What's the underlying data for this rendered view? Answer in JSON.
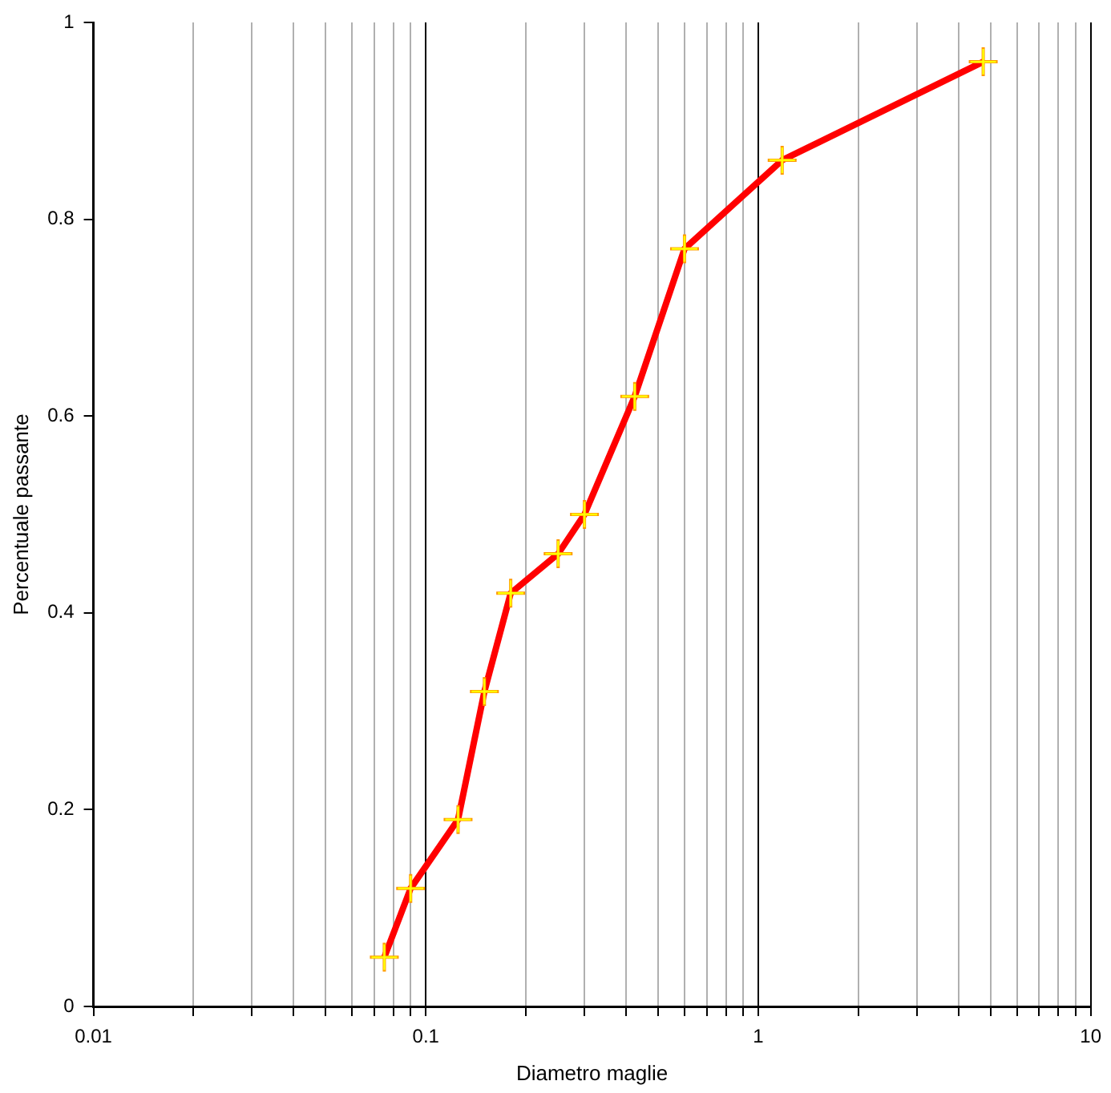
{
  "chart_data": {
    "type": "line",
    "xlabel": "Diametro maglie",
    "ylabel": "Percentuale passante",
    "log": "x",
    "grid": "x",
    "marker": "cross",
    "line_style": "solid",
    "xlim": [
      0.01,
      10
    ],
    "ylim": [
      0,
      1
    ],
    "xticks": [
      0.01,
      {
        "value": 0.02,
        "label": null
      },
      {
        "value": 0.03,
        "label": null
      },
      {
        "value": 0.04,
        "label": null
      },
      {
        "value": 0.05,
        "label": null
      },
      {
        "value": 0.06,
        "label": null
      },
      {
        "value": 0.07,
        "label": null
      },
      {
        "value": 0.08,
        "label": null
      },
      {
        "value": 0.09,
        "label": null
      },
      0.1,
      {
        "value": 0.2,
        "label": null
      },
      {
        "value": 0.3,
        "label": null
      },
      {
        "value": 0.4,
        "label": null
      },
      {
        "value": 0.5,
        "label": null
      },
      {
        "value": 0.6,
        "label": null
      },
      {
        "value": 0.7,
        "label": null
      },
      {
        "value": 0.8,
        "label": null
      },
      {
        "value": 0.9,
        "label": null
      },
      1,
      {
        "value": 2,
        "label": null
      },
      {
        "value": 3,
        "label": null
      },
      {
        "value": 4,
        "label": null
      },
      {
        "value": 5,
        "label": null
      },
      {
        "value": 6,
        "label": null
      },
      {
        "value": 7,
        "label": null
      },
      {
        "value": 8,
        "label": null
      },
      {
        "value": 9,
        "label": null
      },
      10
    ],
    "yticks": [
      0,
      0.2,
      0.4,
      0.6,
      0.8,
      1
    ],
    "series": [
      {
        "color": "#ff0000",
        "x": [
          0.075,
          0.09,
          0.125,
          0.15,
          0.18,
          0.25,
          0.3,
          0.425,
          0.6,
          1.18,
          4.75
        ],
        "values": [
          0.05,
          0.12,
          0.19,
          0.32,
          0.42,
          0.46,
          0.5,
          0.62,
          0.77,
          0.86,
          0.96
        ]
      }
    ]
  }
}
